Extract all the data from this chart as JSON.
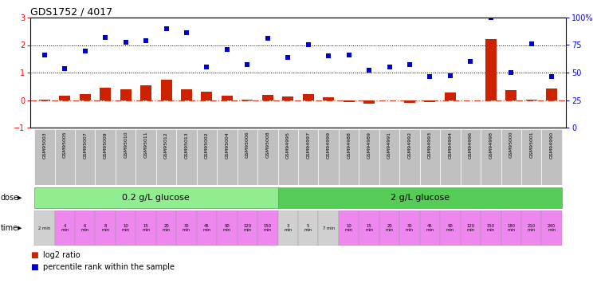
{
  "title": "GDS1752 / 4017",
  "samples": [
    "GSM95003",
    "GSM95005",
    "GSM95007",
    "GSM95009",
    "GSM95010",
    "GSM95011",
    "GSM95012",
    "GSM95013",
    "GSM95002",
    "GSM95004",
    "GSM95006",
    "GSM95008",
    "GSM94995",
    "GSM94997",
    "GSM94999",
    "GSM94988",
    "GSM94989",
    "GSM94991",
    "GSM94992",
    "GSM94993",
    "GSM94994",
    "GSM94996",
    "GSM94998",
    "GSM95000",
    "GSM95001",
    "GSM94990"
  ],
  "log2_ratio": [
    0.02,
    0.16,
    0.22,
    0.44,
    0.4,
    0.54,
    0.73,
    0.38,
    0.3,
    0.17,
    0.02,
    0.18,
    0.12,
    0.22,
    0.1,
    -0.08,
    -0.13,
    -0.02,
    -0.11,
    -0.07,
    0.28,
    -0.02,
    2.22,
    0.35,
    0.02,
    0.42
  ],
  "percentile": [
    1.65,
    1.15,
    1.78,
    2.28,
    2.1,
    2.15,
    2.6,
    2.45,
    1.2,
    1.85,
    1.3,
    2.25,
    1.55,
    2.02,
    1.6,
    1.65,
    1.1,
    1.2,
    1.28,
    0.85,
    0.88,
    1.4,
    3.0,
    1.0,
    2.05,
    0.85
  ],
  "dose_labels": [
    "0.2 g/L glucose",
    "2 g/L glucose"
  ],
  "n_group1": 12,
  "n_group2": 14,
  "time_labels": [
    "2 min",
    "4\nmin",
    "6\nmin",
    "8\nmin",
    "10\nmin",
    "15\nmin",
    "20\nmin",
    "30\nmin",
    "45\nmin",
    "90\nmin",
    "120\nmin",
    "150\nmin",
    "3\nmin",
    "5\nmin",
    "7 min",
    "10\nmin",
    "15\nmin",
    "20\nmin",
    "30\nmin",
    "45\nmin",
    "90\nmin",
    "120\nmin",
    "150\nmin",
    "180\nmin",
    "210\nmin",
    "240\nmin"
  ],
  "time_colors": [
    "#d0d0d0",
    "#ee88ee",
    "#ee88ee",
    "#ee88ee",
    "#ee88ee",
    "#ee88ee",
    "#ee88ee",
    "#ee88ee",
    "#ee88ee",
    "#ee88ee",
    "#ee88ee",
    "#ee88ee",
    "#d0d0d0",
    "#d0d0d0",
    "#d0d0d0",
    "#ee88ee",
    "#ee88ee",
    "#ee88ee",
    "#ee88ee",
    "#ee88ee",
    "#ee88ee",
    "#ee88ee",
    "#ee88ee",
    "#ee88ee",
    "#ee88ee",
    "#ee88ee"
  ],
  "dose_color1": "#90ee90",
  "dose_color2": "#55cc55",
  "sample_bg": "#c0c0c0",
  "sample_border": "#aaaaaa",
  "ylim_left": [
    -1.0,
    3.0
  ],
  "ylim_right": [
    0,
    100
  ],
  "yticks_left": [
    -1,
    0,
    1,
    2,
    3
  ],
  "yticks_right": [
    0,
    25,
    50,
    75,
    100
  ],
  "bar_color": "#cc2200",
  "dot_color": "#0000cc",
  "background_color": "#ffffff"
}
